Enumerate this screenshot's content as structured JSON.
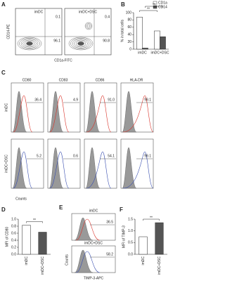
{
  "panel_a": {
    "label": "A",
    "plots": [
      {
        "title": "imDC",
        "q_top": "0.1",
        "q_bottom": "96.1"
      },
      {
        "title": "imDC+DSC",
        "q_top": "0.4",
        "q_bottom": "90.8"
      }
    ],
    "x_label": "CD1a-FITC",
    "y_label": "CD14-PE"
  },
  "panel_c": {
    "label": "C",
    "columns": [
      "CD80",
      "CD83",
      "CD86",
      "HLA-DR"
    ],
    "rows": [
      {
        "name": "imDC",
        "values": [
          "36.4",
          "4.9",
          "91.0",
          "99.1"
        ]
      },
      {
        "name": "imDC+DSC",
        "values": [
          "5.2",
          "0.6",
          "54.1",
          "99.1"
        ]
      }
    ],
    "x_label": "Counts"
  },
  "panel_e": {
    "label": "E",
    "plots": [
      {
        "title": "imDC",
        "value": "36.5"
      },
      {
        "title": "imDC+DSC",
        "value": "58.2"
      }
    ],
    "x_label": "TIMP-3-APC",
    "y_label": "Counts"
  },
  "chart_data": [
    {
      "type": "bar",
      "panel_label": "B",
      "categories": [
        "imDC",
        "imDC+DSC"
      ],
      "series": [
        {
          "name": "CD1a",
          "color": "#ffffff",
          "values": [
            88,
            50
          ]
        },
        {
          "name": "CD14",
          "color": "#555555",
          "values": [
            3,
            34
          ]
        }
      ],
      "ylim": [
        0,
        100
      ],
      "yticks": [
        0,
        20,
        40,
        60,
        80,
        100
      ],
      "y_label": "% in total cells",
      "annotations": [
        "**",
        "**"
      ]
    },
    {
      "type": "bar",
      "panel_label": "D",
      "categories": [
        "imDC",
        "imDC+DSC"
      ],
      "values": [
        0.83,
        0.63
      ],
      "colors": [
        "#ffffff",
        "#555555"
      ],
      "ylim": [
        0,
        1
      ],
      "yticks": [
        {
          "value": 0,
          "label": "0.0"
        },
        {
          "value": 0.2,
          "label": "0.2"
        },
        {
          "value": 0.4,
          "label": "0.4"
        },
        {
          "value": 0.6,
          "label": "0.6"
        },
        {
          "value": 0.8,
          "label": "0.8"
        },
        {
          "value": 1,
          "label": "1.0"
        }
      ],
      "y_label": "MFI of CD80",
      "annotations": [
        "**"
      ]
    },
    {
      "type": "bar",
      "panel_label": "F",
      "categories": [
        "imDC",
        "imDC+DSC"
      ],
      "values": [
        0.75,
        1.35
      ],
      "colors": [
        "#ffffff",
        "#555555"
      ],
      "ylim": [
        0,
        1.5
      ],
      "yticks": [
        {
          "value": 0,
          "label": "0.0"
        },
        {
          "value": 0.5,
          "label": "0.5"
        },
        {
          "value": 1,
          "label": "1.0"
        },
        {
          "value": 1.5,
          "label": "1.5"
        }
      ],
      "y_label": "MFI of TIMP-3",
      "annotations": [
        "**"
      ]
    }
  ]
}
